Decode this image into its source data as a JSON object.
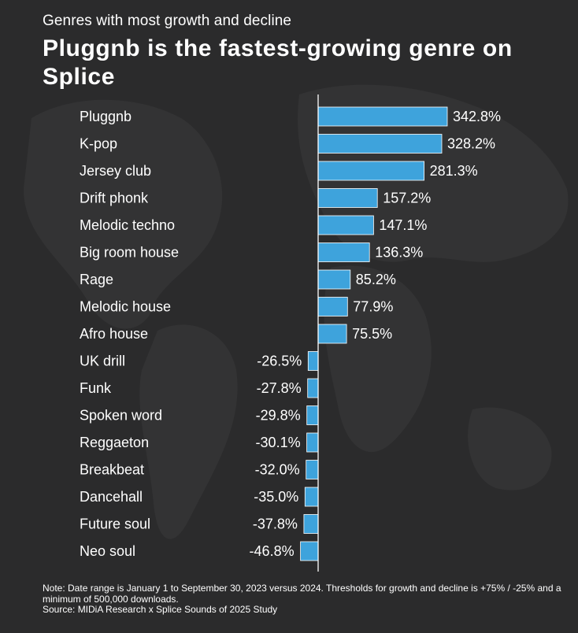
{
  "subtitle": "Genres with most growth and decline",
  "title": "Pluggnb is the fastest-growing genre on Splice",
  "notes": {
    "note": "Note: Date range is January 1 to September 30, 2023 versus 2024. Thresholds for growth and decline is +75% / -25% and a minimum of 500,000 downloads.",
    "source": "Source: MIDiA Research x Splice Sounds of 2025 Study"
  },
  "colors": {
    "background": "#2b2b2c",
    "bar": "#3ea3dc",
    "text": "#ffffff"
  },
  "chart_data": {
    "type": "bar",
    "orientation": "horizontal",
    "unit": "%",
    "categories": [
      "Pluggnb",
      "K-pop",
      "Jersey club",
      "Drift phonk",
      "Melodic techno",
      "Big room house",
      "Rage",
      "Melodic house",
      "Afro house",
      "UK drill",
      "Funk",
      "Spoken word",
      "Reggaeton",
      "Breakbeat",
      "Dancehall",
      "Future soul",
      "Neo soul"
    ],
    "values": [
      342.8,
      328.2,
      281.3,
      157.2,
      147.1,
      136.3,
      85.2,
      77.9,
      75.5,
      -26.5,
      -27.8,
      -29.8,
      -30.1,
      -32.0,
      -35.0,
      -37.8,
      -46.8
    ],
    "labels": [
      "342.8%",
      "328.2%",
      "281.3%",
      "157.2%",
      "147.1%",
      "136.3%",
      "85.2%",
      "77.9%",
      "75.5%",
      "-26.5%",
      "-27.8%",
      "-29.8%",
      "-30.1%",
      "-32.0%",
      "-35.0%",
      "-37.8%",
      "-46.8%"
    ],
    "grid": false,
    "legend": "none"
  }
}
